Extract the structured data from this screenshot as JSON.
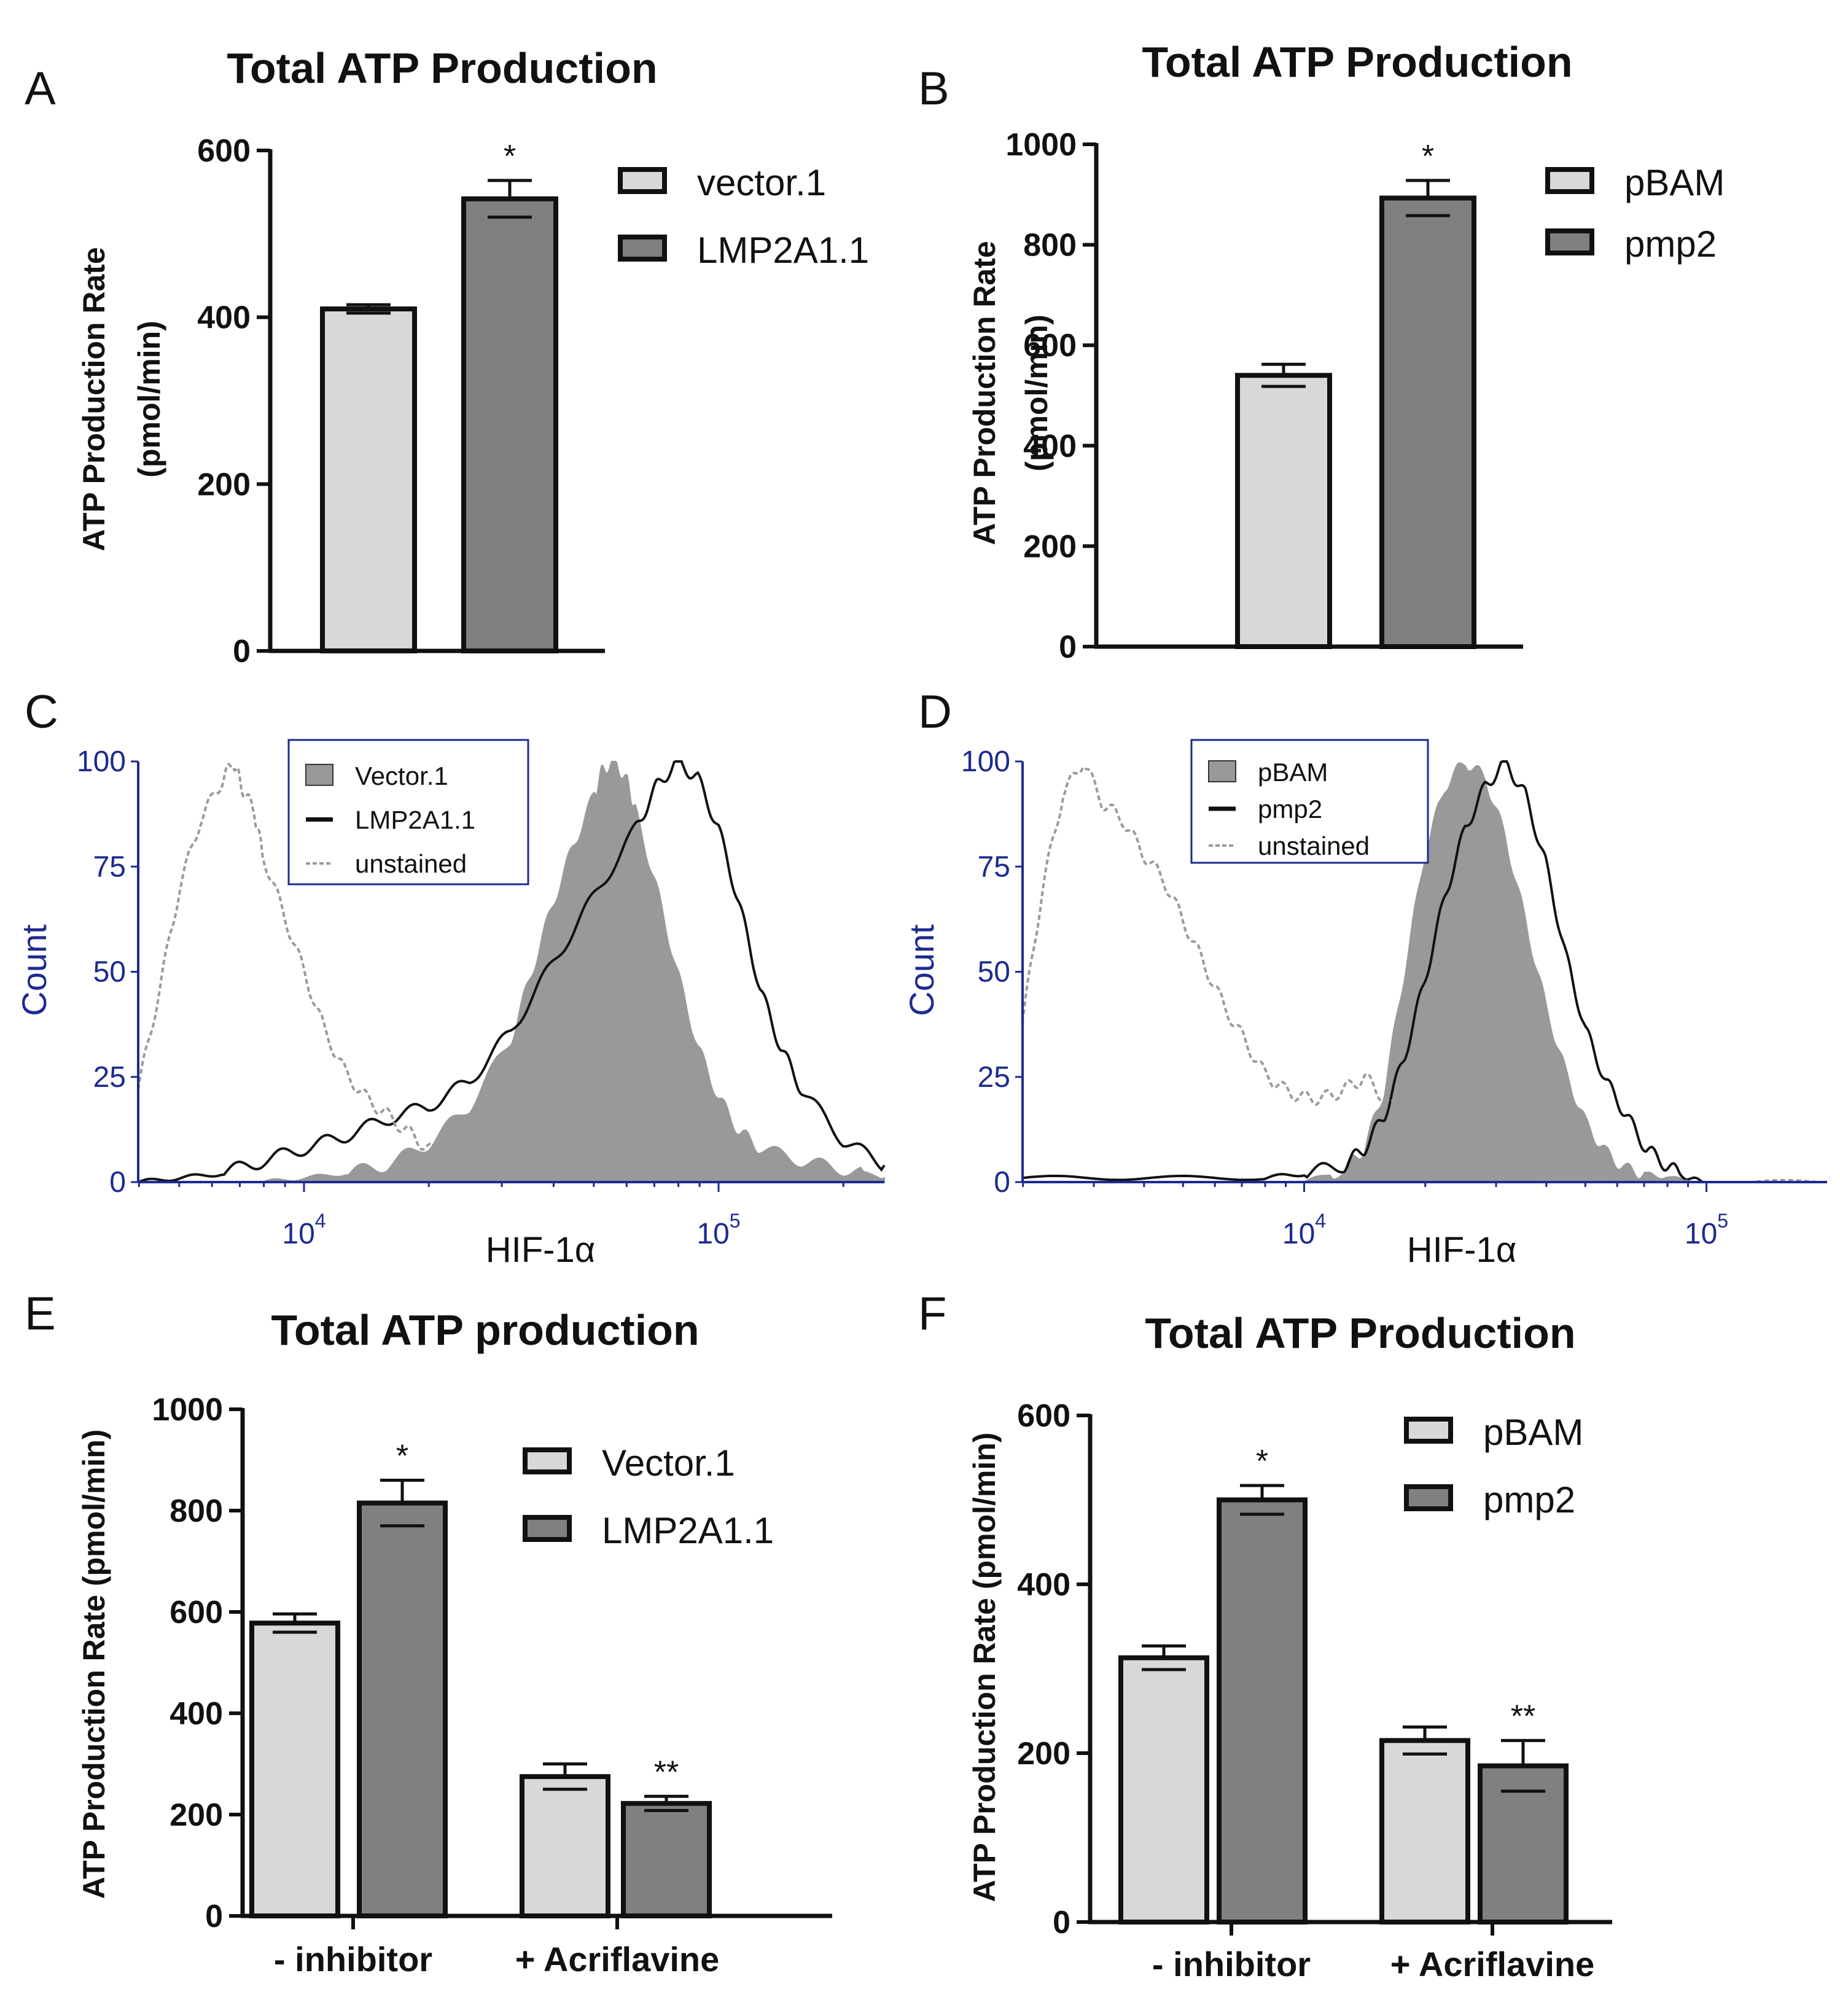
{
  "chart_data": [
    {
      "panel": "A",
      "type": "bar",
      "title": "Total ATP Production",
      "ylabel": [
        "ATP Production Rate",
        "(pmol/min)"
      ],
      "yticks": [
        "0",
        "200",
        "400",
        "600"
      ],
      "ylim": [
        0,
        600
      ],
      "groups": [
        ""
      ],
      "series": [
        {
          "name": "vector.1",
          "color": "#d8d8d8",
          "values": [
            410
          ],
          "errors": [
            5
          ],
          "marks": [
            ""
          ]
        },
        {
          "name": "LMP2A1.1",
          "color": "#808080",
          "values": [
            542
          ],
          "errors": [
            22
          ],
          "marks": [
            "*"
          ]
        }
      ],
      "legend": "top-right"
    },
    {
      "panel": "B",
      "type": "bar",
      "title": "Total ATP Production",
      "ylabel": [
        "ATP Production Rate",
        "(pmol/min)"
      ],
      "yticks": [
        "0",
        "200",
        "400",
        "600",
        "800",
        "1000"
      ],
      "ylim": [
        0,
        1000
      ],
      "groups": [
        ""
      ],
      "series": [
        {
          "name": "pBAM",
          "color": "#d8d8d8",
          "values": [
            540
          ],
          "errors": [
            22
          ],
          "marks": [
            ""
          ]
        },
        {
          "name": "pmp2",
          "color": "#808080",
          "values": [
            893
          ],
          "errors": [
            35
          ],
          "marks": [
            "*"
          ]
        }
      ],
      "legend": "top-right"
    },
    {
      "panel": "C",
      "type": "area",
      "title": "",
      "xlabel": "HIF-1α",
      "ylabel": "Count",
      "yticks": [
        "0",
        "25",
        "50",
        "75",
        "100"
      ],
      "ylim": [
        0,
        100
      ],
      "xticks": [
        {
          "base": "10",
          "exp": "4"
        },
        {
          "base": "10",
          "exp": "5"
        }
      ],
      "xlim_log10": [
        3.6,
        5.4
      ],
      "legend_entries": [
        "Vector.1",
        "LMP2A1.1",
        "unstained"
      ],
      "series": [
        {
          "name": "Vector.1",
          "style": "filled",
          "x": [
            3.9,
            4.0,
            4.1,
            4.2,
            4.3,
            4.4,
            4.5,
            4.55,
            4.6,
            4.65,
            4.7,
            4.72,
            4.75,
            4.78,
            4.8,
            4.85,
            4.9,
            4.95,
            5.0,
            5.05,
            5.1,
            5.2,
            5.3,
            5.4
          ],
          "y": [
            0,
            1,
            2,
            4,
            9,
            18,
            34,
            50,
            66,
            80,
            92,
            98,
            100,
            95,
            88,
            70,
            50,
            32,
            20,
            12,
            8,
            5,
            3,
            1
          ]
        },
        {
          "name": "LMP2A1.1",
          "style": "solid",
          "x": [
            3.6,
            3.7,
            3.8,
            3.9,
            4.0,
            4.1,
            4.2,
            4.3,
            4.4,
            4.5,
            4.6,
            4.7,
            4.8,
            4.85,
            4.9,
            4.95,
            5.0,
            5.05,
            5.1,
            5.15,
            5.2,
            5.3,
            5.4
          ],
          "y": [
            0,
            1,
            2,
            5,
            8,
            11,
            15,
            18,
            24,
            36,
            52,
            68,
            84,
            94,
            100,
            96,
            84,
            66,
            46,
            32,
            22,
            10,
            4
          ]
        },
        {
          "name": "unstained",
          "style": "dashed",
          "x": [
            3.6,
            3.65,
            3.7,
            3.75,
            3.8,
            3.83,
            3.85,
            3.88,
            3.9,
            3.95,
            4.0,
            4.05,
            4.1,
            4.15,
            4.2,
            4.25,
            4.3,
            4.35
          ],
          "y": [
            22,
            45,
            70,
            86,
            95,
            100,
            94,
            88,
            78,
            64,
            50,
            36,
            26,
            20,
            16,
            12,
            8,
            4
          ]
        }
      ]
    },
    {
      "panel": "D",
      "type": "area",
      "title": "",
      "xlabel": "HIF-1α",
      "ylabel": "Count",
      "yticks": [
        "0",
        "25",
        "50",
        "75",
        "100"
      ],
      "ylim": [
        0,
        100
      ],
      "xticks": [
        {
          "base": "10",
          "exp": "4"
        },
        {
          "base": "10",
          "exp": "5"
        }
      ],
      "xlim_log10": [
        3.3,
        5.3
      ],
      "legend_entries": [
        "pBAM",
        "pmp2",
        "unstained"
      ],
      "series": [
        {
          "name": "pBAM",
          "style": "filled",
          "x": [
            4.0,
            4.1,
            4.15,
            4.2,
            4.25,
            4.3,
            4.35,
            4.4,
            4.45,
            4.5,
            4.55,
            4.6,
            4.65,
            4.7,
            4.75,
            4.8,
            4.85,
            4.9,
            5.0
          ],
          "y": [
            0,
            3,
            8,
            22,
            50,
            78,
            94,
            100,
            96,
            82,
            62,
            42,
            26,
            14,
            7,
            3,
            2,
            1,
            0
          ]
        },
        {
          "name": "pmp2",
          "style": "solid",
          "x": [
            3.3,
            3.6,
            3.9,
            4.0,
            4.1,
            4.15,
            4.2,
            4.25,
            4.3,
            4.35,
            4.4,
            4.45,
            4.5,
            4.55,
            4.6,
            4.65,
            4.7,
            4.75,
            4.8,
            4.85,
            4.9,
            4.95,
            5.0
          ],
          "y": [
            1,
            1,
            1,
            2,
            4,
            8,
            16,
            30,
            48,
            68,
            84,
            94,
            100,
            92,
            76,
            54,
            36,
            24,
            16,
            8,
            4,
            1,
            0
          ]
        },
        {
          "name": "unstained",
          "style": "dashed",
          "x": [
            3.3,
            3.35,
            3.4,
            3.45,
            3.5,
            3.55,
            3.6,
            3.65,
            3.7,
            3.75,
            3.8,
            3.85,
            3.9,
            3.95,
            4.0,
            4.05,
            4.1,
            4.15,
            4.2,
            4.3,
            4.4,
            4.5,
            4.6,
            4.8,
            5.0,
            5.3
          ],
          "y": [
            38,
            70,
            92,
            100,
            90,
            86,
            78,
            72,
            62,
            52,
            42,
            34,
            26,
            22,
            20,
            20,
            22,
            25,
            20,
            10,
            4,
            2,
            1,
            0,
            0,
            0
          ]
        }
      ]
    },
    {
      "panel": "E",
      "type": "bar",
      "title": "Total ATP production",
      "ylabel": [
        "ATP Production Rate (pmol/min)"
      ],
      "yticks": [
        "0",
        "200",
        "400",
        "600",
        "800",
        "1000"
      ],
      "ylim": [
        0,
        1000
      ],
      "groups": [
        "- inhibitor",
        "+ Acriflavine"
      ],
      "series": [
        {
          "name": "Vector.1",
          "color": "#d8d8d8",
          "values": [
            578,
            275
          ],
          "errors": [
            18,
            25
          ],
          "marks": [
            "",
            ""
          ]
        },
        {
          "name": "LMP2A1.1",
          "color": "#808080",
          "values": [
            815,
            222
          ],
          "errors": [
            45,
            14
          ],
          "marks": [
            "*",
            "**"
          ]
        }
      ],
      "legend": "top-right"
    },
    {
      "panel": "F",
      "type": "bar",
      "title": "Total ATP  Production",
      "ylabel": [
        "ATP Production Rate (pmol/min)"
      ],
      "yticks": [
        "0",
        "200",
        "400",
        "600"
      ],
      "ylim": [
        0,
        600
      ],
      "groups": [
        "- inhibitor",
        "+ Acriflavine"
      ],
      "series": [
        {
          "name": "pBAM",
          "color": "#d8d8d8",
          "values": [
            313,
            215
          ],
          "errors": [
            14,
            16
          ],
          "marks": [
            "",
            ""
          ]
        },
        {
          "name": "pmp2",
          "color": "#808080",
          "values": [
            500,
            185
          ],
          "errors": [
            17,
            30
          ],
          "marks": [
            "*",
            "**"
          ]
        }
      ],
      "legend": "top-right"
    }
  ]
}
